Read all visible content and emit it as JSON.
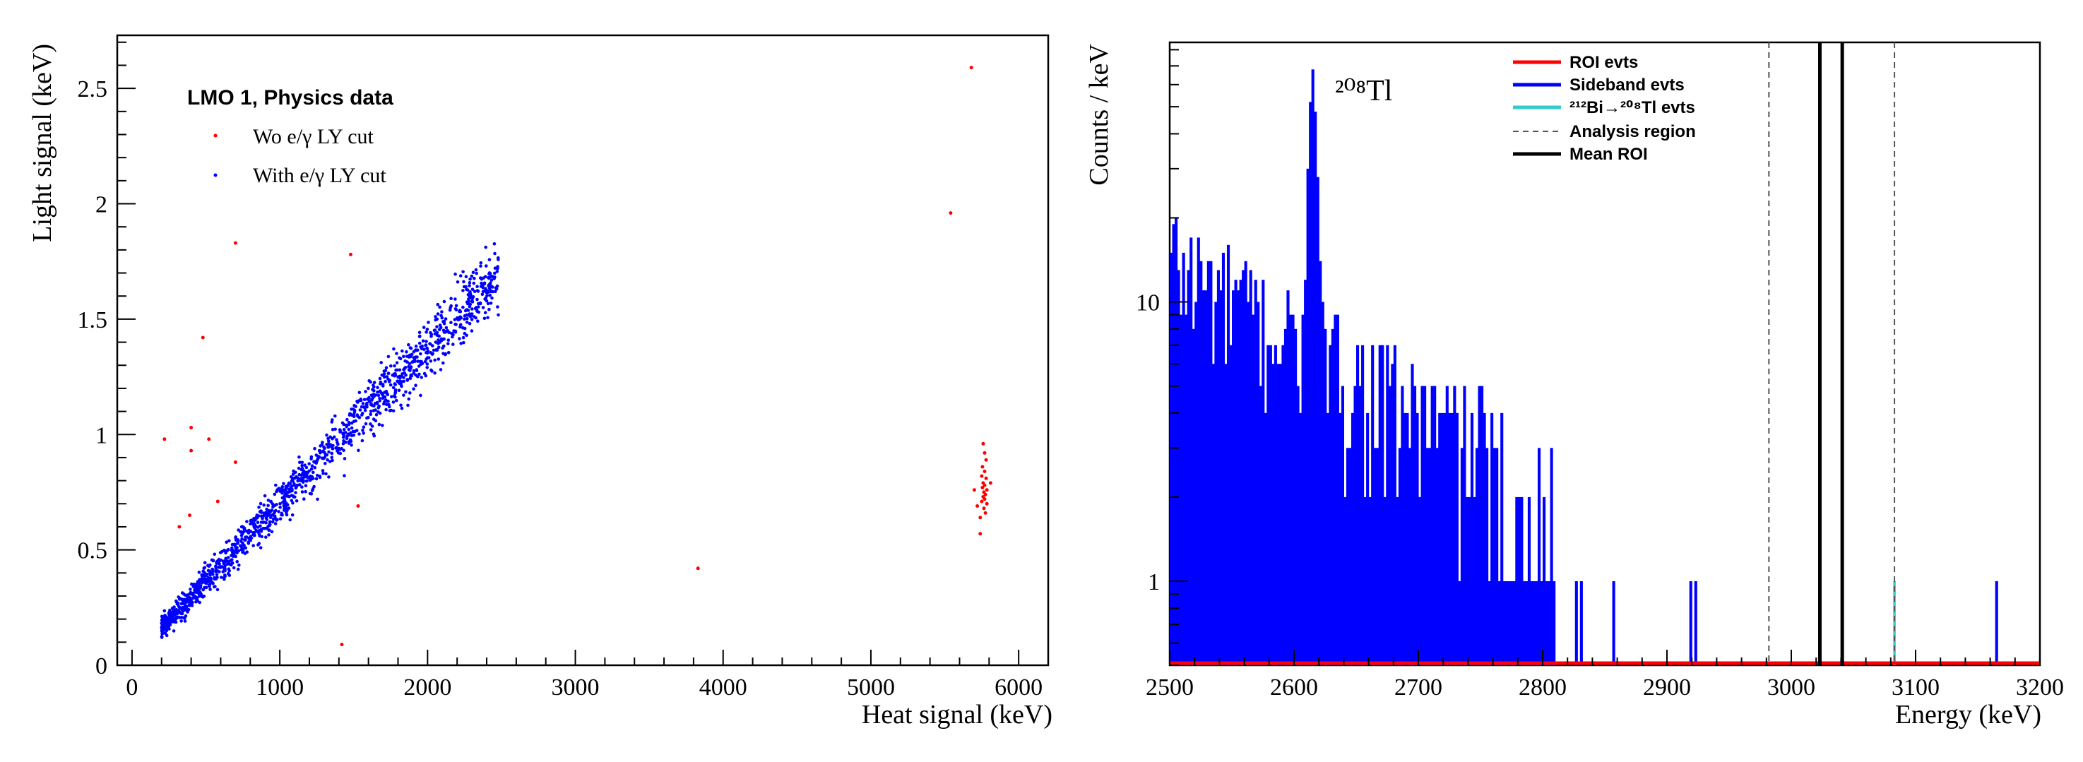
{
  "chart_data": [
    {
      "type": "scatter",
      "title": "",
      "xlabel": "Heat signal (keV)",
      "ylabel": "Light signal (keV)",
      "xlim": [
        -100,
        6200
      ],
      "ylim": [
        0,
        2.73
      ],
      "x_ticks": [
        "0",
        "1000",
        "2000",
        "3000",
        "4000",
        "5000",
        "6000"
      ],
      "y_ticks": [
        "0",
        "0.5",
        "1",
        "1.5",
        "2",
        "2.5"
      ],
      "legend": {
        "position": "top-left",
        "header": "LMO 1, Physics data",
        "entries": [
          "Wo e/γ LY cut",
          "With e/γ LY cut"
        ]
      },
      "series": [
        {
          "name": "Wo e/γ LY cut",
          "color": "#ff0000",
          "points": [
            [
              700,
              1.83
            ],
            [
              1480,
              1.78
            ],
            [
              480,
              1.42
            ],
            [
              220,
              0.98
            ],
            [
              400,
              1.03
            ],
            [
              520,
              0.98
            ],
            [
              400,
              0.93
            ],
            [
              700,
              0.88
            ],
            [
              320,
              0.6
            ],
            [
              580,
              0.71
            ],
            [
              390,
              0.65
            ],
            [
              1530,
              0.69
            ],
            [
              1420,
              0.09
            ],
            [
              3830,
              0.42
            ],
            [
              5540,
              1.96
            ],
            [
              5680,
              2.59
            ],
            [
              5760,
              0.96
            ],
            [
              5770,
              0.92
            ],
            [
              5780,
              0.89
            ],
            [
              5755,
              0.86
            ],
            [
              5770,
              0.84
            ],
            [
              5750,
              0.82
            ],
            [
              5780,
              0.81
            ],
            [
              5760,
              0.79
            ],
            [
              5770,
              0.78
            ],
            [
              5755,
              0.77
            ],
            [
              5785,
              0.76
            ],
            [
              5765,
              0.75
            ],
            [
              5775,
              0.74
            ],
            [
              5760,
              0.73
            ],
            [
              5770,
              0.72
            ],
            [
              5750,
              0.71
            ],
            [
              5785,
              0.7
            ],
            [
              5765,
              0.68
            ],
            [
              5775,
              0.66
            ],
            [
              5740,
              0.64
            ],
            [
              5720,
              0.69
            ],
            [
              5810,
              0.79
            ],
            [
              5700,
              0.76
            ],
            [
              5740,
              0.57
            ]
          ]
        },
        {
          "name": "With e/γ LY cut",
          "color": "#0000ff",
          "generator": {
            "n": 1400,
            "x_min": 200,
            "x_max": 2480,
            "slope_per_kev": 0.000673,
            "intercept": 0.03,
            "rel_spread": 0.07,
            "abs_spread": 0.04
          }
        }
      ]
    },
    {
      "type": "bar",
      "title": "",
      "annotation": "²⁰⁸Tl",
      "xlabel": "Energy (keV)",
      "ylabel": "Counts / keV",
      "log_y": true,
      "xlim": [
        2500,
        3200
      ],
      "ylim": [
        0.5,
        85
      ],
      "x_ticks": [
        "2500",
        "2600",
        "2700",
        "2800",
        "2900",
        "3000",
        "3100",
        "3200"
      ],
      "y_ticks": [
        "1",
        "10"
      ],
      "legend": {
        "position": "top-center",
        "entries": [
          {
            "label": "ROI evts",
            "color": "#ff0000",
            "style": "solid"
          },
          {
            "label": "Sideband evts",
            "color": "#0000ff",
            "style": "solid"
          },
          {
            "label": "²¹²Bi→²⁰⁸Tl evts",
            "color": "#33cccc",
            "style": "solid"
          },
          {
            "label": "Analysis region",
            "color": "#555555",
            "style": "dashed"
          },
          {
            "label": "Mean ROI",
            "color": "#000000",
            "style": "solid"
          }
        ]
      },
      "bin_width_kev": 2,
      "series": [
        {
          "name": "Sideband evts",
          "color": "#0000ff",
          "peak_bins": [
            [
              2608,
              12
            ],
            [
              2610,
              30
            ],
            [
              2612,
              52
            ],
            [
              2614,
              68
            ],
            [
              2616,
              48
            ],
            [
              2618,
              28
            ],
            [
              2620,
              14
            ]
          ],
          "isolated_bins": [
            [
              2826,
              1
            ],
            [
              2830,
              1
            ],
            [
              2856,
              1
            ],
            [
              2918,
              1
            ],
            [
              2922,
              1
            ],
            [
              3164,
              1
            ]
          ],
          "envelope": {
            "start": 2500,
            "end": 2810,
            "max_a": 18,
            "max_b": 5.5,
            "decay_kev": 170
          }
        },
        {
          "name": "²¹²Bi→²⁰⁸Tl evts",
          "color": "#33cccc",
          "bins": [
            [
              3082,
              1
            ]
          ]
        }
      ],
      "analysis_region_kev": [
        2982,
        3083
      ],
      "mean_roi_kev": [
        3023,
        3041
      ]
    }
  ]
}
